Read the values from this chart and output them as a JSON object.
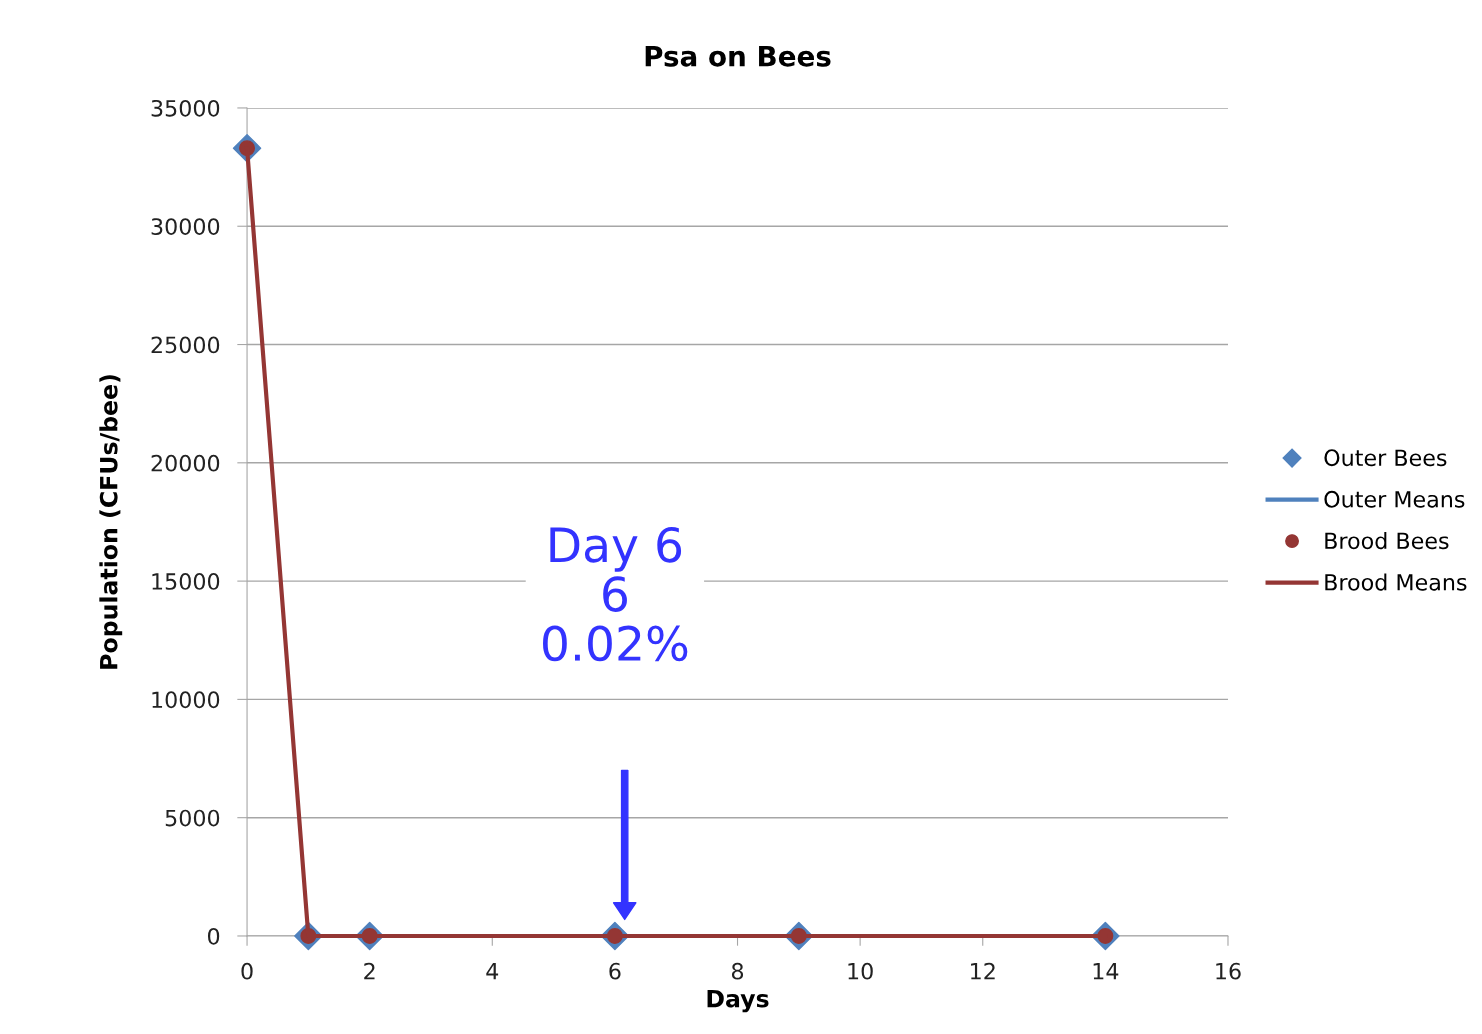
{
  "chart_data": {
    "type": "line",
    "title": "Psa on Bees",
    "xlabel": "Days",
    "ylabel": "Population (CFUs/bee)",
    "x": [
      0,
      1,
      2,
      6,
      9,
      14
    ],
    "series": [
      {
        "name": "Outer Bees",
        "type": "scatter",
        "marker": "diamond",
        "color": "#4f81bd",
        "values": [
          33300,
          0,
          0,
          0,
          0,
          0
        ]
      },
      {
        "name": "Outer Means",
        "marker": "none",
        "color": "#4f81bd",
        "values": [
          null,
          null,
          null,
          null,
          null,
          null
        ]
      },
      {
        "name": "Brood Bees",
        "type": "scatter",
        "marker": "circle",
        "color": "#943634",
        "values": [
          33300,
          0,
          0,
          0,
          0,
          0
        ]
      },
      {
        "name": "Brood Means",
        "marker": "none",
        "color": "#943634",
        "values": [
          33300,
          0,
          0,
          0,
          0,
          0
        ]
      }
    ],
    "xlim": [
      0,
      16
    ],
    "xticks": [
      0,
      2,
      4,
      6,
      8,
      10,
      12,
      14,
      16
    ],
    "ylim": [
      0,
      35000
    ],
    "yticks": [
      0,
      5000,
      10000,
      15000,
      20000,
      25000,
      30000,
      35000
    ],
    "grid": "y",
    "legend": "right",
    "annotations": [
      "Day 6\n6\n0.02%"
    ]
  }
}
